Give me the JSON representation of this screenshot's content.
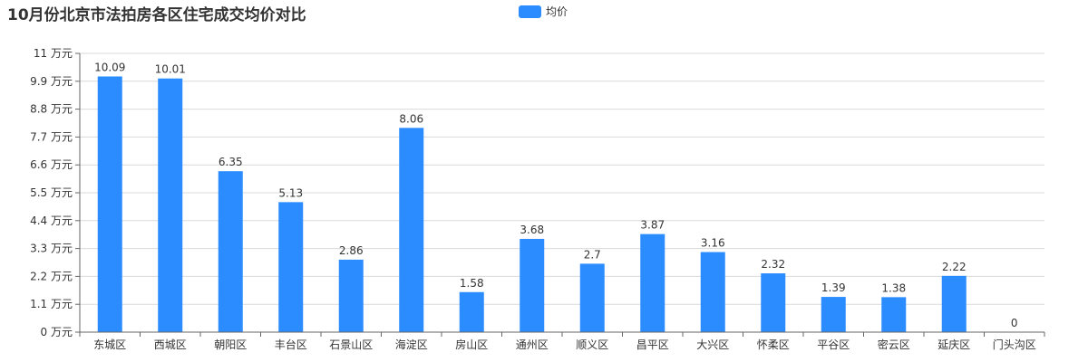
{
  "chart_data": {
    "type": "bar",
    "title": "10月份北京市法拍房各区住宅成交均价对比",
    "categories": [
      "东城区",
      "西城区",
      "朝阳区",
      "丰台区",
      "石景山区",
      "海淀区",
      "房山区",
      "通州区",
      "顺义区",
      "昌平区",
      "大兴区",
      "怀柔区",
      "平谷区",
      "密云区",
      "延庆区",
      "门头沟区"
    ],
    "series": [
      {
        "name": "均价",
        "values": [
          10.09,
          10.01,
          6.35,
          5.13,
          2.86,
          8.06,
          1.58,
          3.68,
          2.7,
          3.87,
          3.16,
          2.32,
          1.39,
          1.38,
          2.22,
          0
        ]
      }
    ],
    "data_labels": [
      "10.09",
      "10.01",
      "6.35",
      "5.13",
      "2.86",
      "8.06",
      "1.58",
      "3.68",
      "2.7",
      "3.87",
      "3.16",
      "2.32",
      "1.39",
      "1.38",
      "2.22",
      "0"
    ],
    "y_ticks": [
      0,
      1.1,
      2.2,
      3.3,
      4.4,
      5.5,
      6.6,
      7.7,
      8.8,
      9.9,
      11
    ],
    "y_tick_labels": [
      "0 万元",
      "1.1 万元",
      "2.2 万元",
      "3.3 万元",
      "4.4 万元",
      "5.5 万元",
      "6.6 万元",
      "7.7 万元",
      "8.8 万元",
      "9.9 万元",
      "11 万元"
    ],
    "ylim": [
      0,
      11
    ],
    "xlabel": "",
    "ylabel": "",
    "grid": true,
    "legend_position": "top-center",
    "colors": {
      "bar": "#2a8cff",
      "grid": "#d9d9d9",
      "axis": "#666666"
    }
  }
}
